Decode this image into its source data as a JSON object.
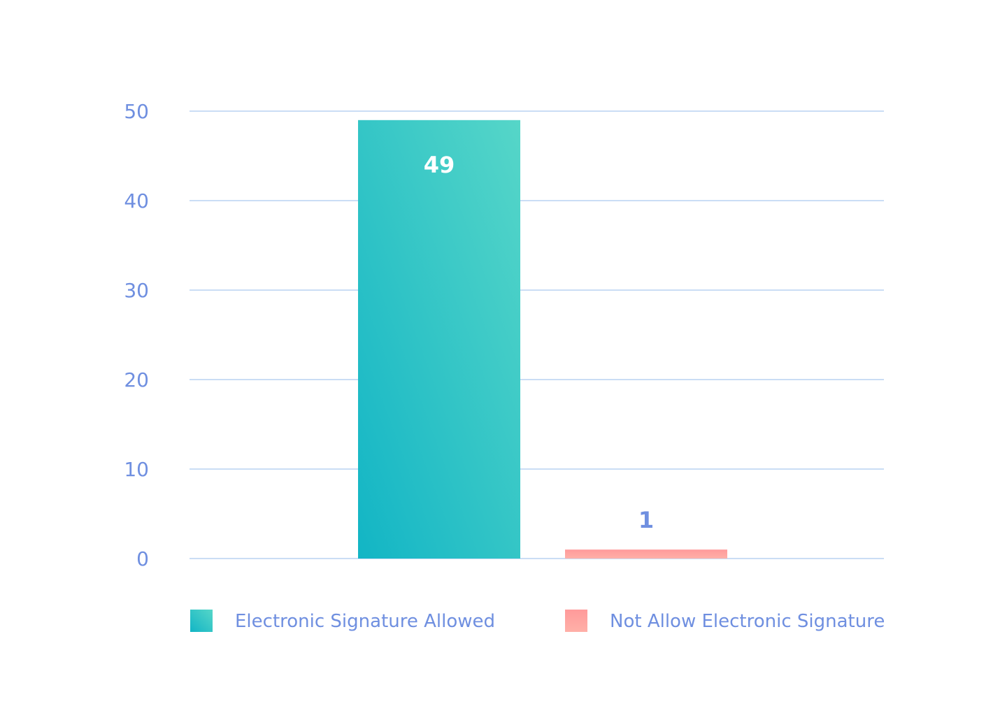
{
  "chart_data": {
    "type": "bar",
    "categories": [
      "Electronic Signature Allowed",
      "Not Allow Electronic Signature"
    ],
    "values": [
      49,
      1
    ],
    "data_labels": [
      "49",
      "1"
    ],
    "ylim": [
      0,
      50
    ],
    "yticks": [
      0,
      10,
      20,
      30,
      40,
      50
    ],
    "ytick_labels": [
      "0",
      "10",
      "20",
      "30",
      "40",
      "50"
    ],
    "grid": true,
    "legend_position": "bottom",
    "colors": {
      "series_1_top": "#56d6c8",
      "series_1_bottom": "#12b5c5",
      "series_2_top": "#ff9a9a",
      "series_2_bottom": "#ffb0a8",
      "axis_text": "#6f8fe0",
      "grid": "#b9d2f2",
      "label_inside": "#ffffff",
      "label_outside": "#6f8fe0"
    }
  }
}
